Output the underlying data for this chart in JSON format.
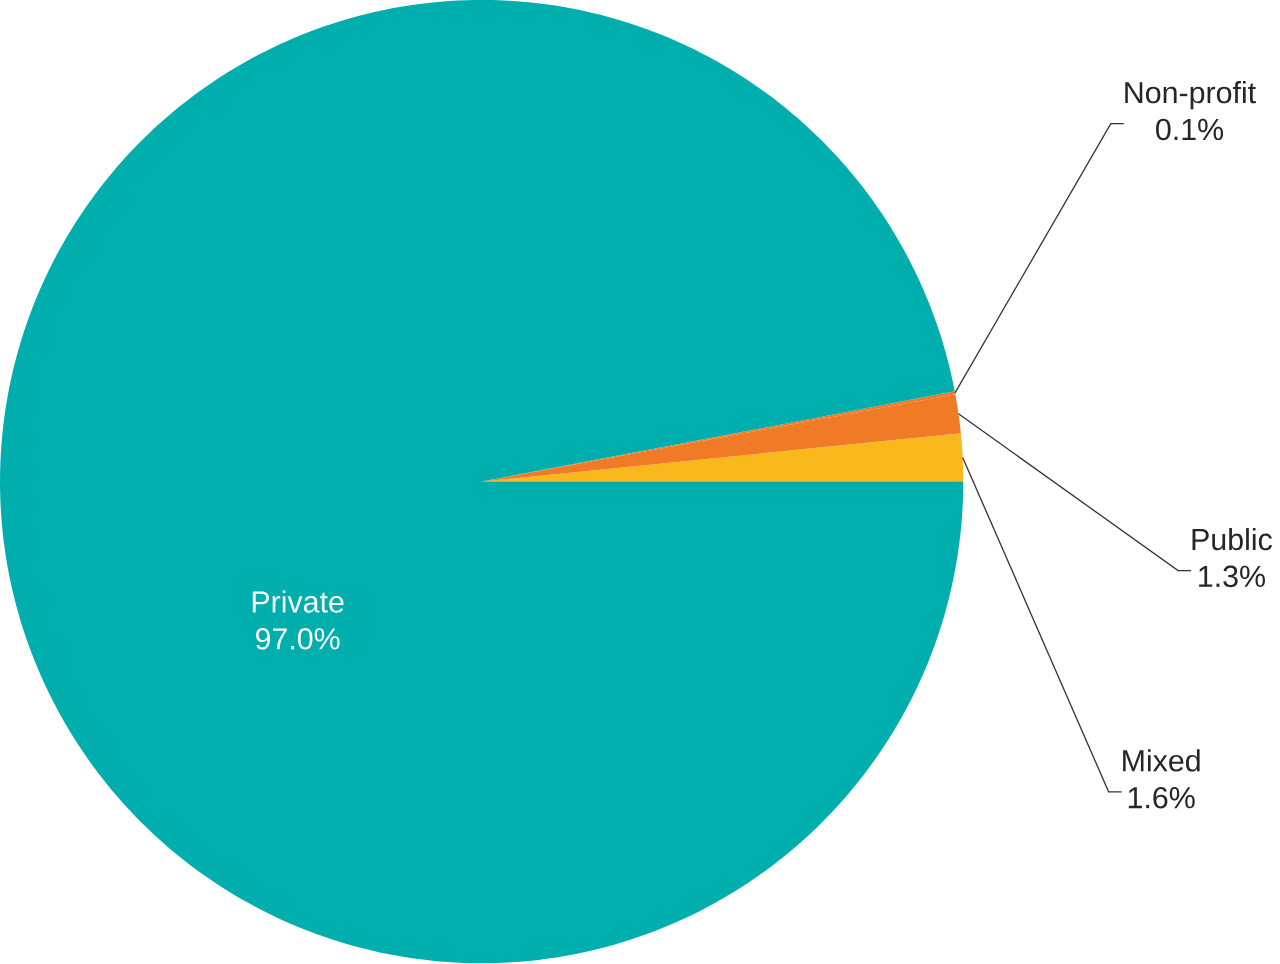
{
  "chart_data": {
    "type": "pie",
    "categories": [
      "Mixed",
      "Public",
      "Non-profit",
      "Private"
    ],
    "values": [
      1.6,
      1.3,
      0.1,
      97.0
    ],
    "colors": [
      "#f9b81b",
      "#f07a26",
      "#f07a26",
      "#00aeae"
    ],
    "value_labels": [
      "1.6%",
      "1.3%",
      "0.1%",
      "97.0%"
    ]
  }
}
